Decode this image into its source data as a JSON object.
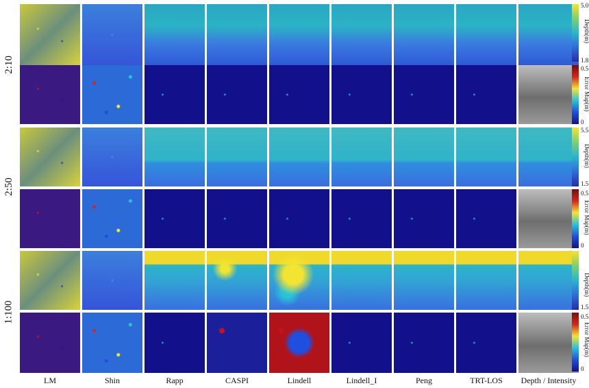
{
  "columns": [
    "LM",
    "Shin",
    "Rapp",
    "CASPI",
    "Lindell",
    "Lindell_I",
    "Peng",
    "TRT-LOS",
    "Depth / Intensity"
  ],
  "rows": [
    {
      "label": "2:10",
      "depth_ticks": {
        "max": "5.0",
        "min": "1.8"
      },
      "depth_title": "Depth(m)",
      "error_ticks": {
        "max": "0.5",
        "mid": "0",
        "min": "0"
      },
      "error_title": "Error Map(m)"
    },
    {
      "label": "2:50",
      "depth_ticks": {
        "max": "5.5",
        "min": "1.5"
      },
      "depth_title": "Depth(m)",
      "error_ticks": {
        "max": "0.5",
        "mid": "0",
        "min": "0"
      },
      "error_title": "Error Map(m)"
    },
    {
      "label": "1:100",
      "depth_ticks": {
        "max": "",
        "min": "1.5"
      },
      "depth_title": "Depth(m)",
      "error_ticks": {
        "max": "0.5",
        "mid": "0",
        "min": "0"
      },
      "error_title": "Error Map(m)"
    }
  ],
  "colors": {
    "deep_blue": "#1a2fd6",
    "mid_blue": "#3b64e8",
    "cyan": "#27b4c8",
    "yellow": "#f2e23a",
    "red": "#c0151e",
    "error_bg": "#12108a",
    "gray": "#8a8a8a"
  }
}
